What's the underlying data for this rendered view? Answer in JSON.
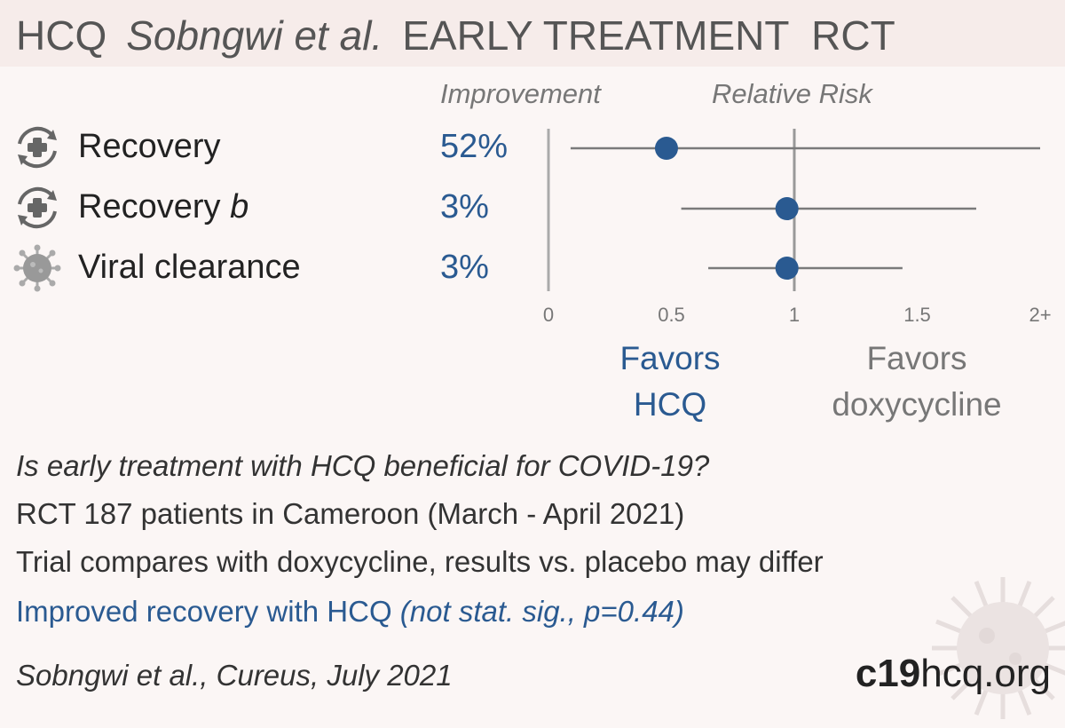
{
  "title": {
    "drug": "HCQ",
    "authors": "Sobngwi et al.",
    "design": "EARLY TREATMENT  RCT"
  },
  "columns": {
    "improvement": "Improvement",
    "relative_risk": "Relative Risk"
  },
  "rows": [
    {
      "label": "Recovery",
      "suffix": "",
      "value": "52%",
      "icon": "recovery-icon"
    },
    {
      "label": "Recovery ",
      "suffix": "b",
      "value": "3%",
      "icon": "recovery-icon"
    },
    {
      "label": "Viral clearance",
      "suffix": "",
      "value": "3%",
      "icon": "virus-icon"
    }
  ],
  "chart_data": {
    "type": "scatter",
    "x_axis": {
      "range": [
        0,
        2
      ],
      "ticks": [
        "0",
        "0.5",
        "1",
        "1.5",
        "2+"
      ],
      "tick_values": [
        0,
        0.5,
        1,
        1.5,
        2
      ]
    },
    "points": [
      {
        "category": "Recovery",
        "rr": 0.48,
        "ci_low": 0.09,
        "ci_high": 2.0
      },
      {
        "category": "Recovery b",
        "rr": 0.97,
        "ci_low": 0.54,
        "ci_high": 1.74
      },
      {
        "category": "Viral clearance",
        "rr": 0.97,
        "ci_low": 0.65,
        "ci_high": 1.44
      }
    ],
    "reference_line": 1
  },
  "favors": {
    "left_line1": "Favors",
    "left_line2": "HCQ",
    "right_line1": "Favors",
    "right_line2": "doxycycline"
  },
  "description": {
    "question": "Is early treatment with HCQ beneficial for COVID-19?",
    "study": "RCT 187 patients in Cameroon (March - April 2021)",
    "note": "Trial compares with doxycycline, results vs. placebo may differ",
    "conclusion_main": "Improved recovery with HCQ ",
    "conclusion_detail": "(not stat. sig., p=0.44)"
  },
  "citation": "Sobngwi et al., Cureus, July 2021",
  "brand": {
    "bold": "c19",
    "rest": "hcq.org"
  },
  "colors": {
    "accent": "#2a5a91",
    "muted": "#777777",
    "line": "#777777"
  }
}
